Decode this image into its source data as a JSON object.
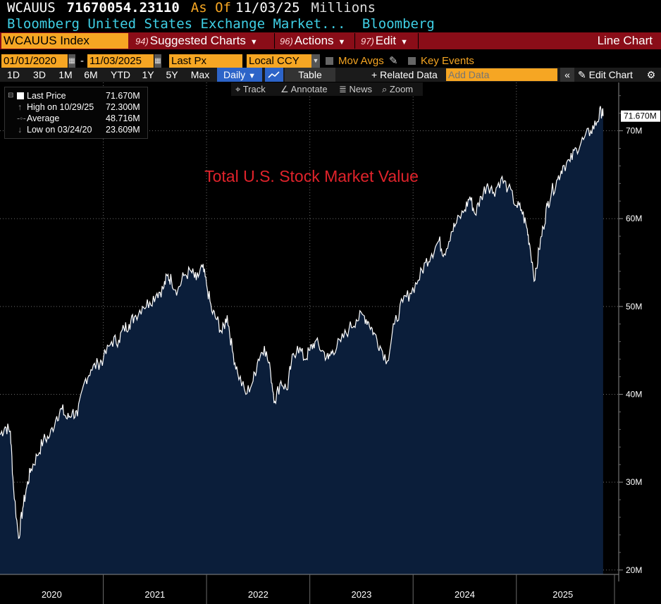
{
  "header": {
    "ticker": "WCAUUS",
    "value": "71670054.23110",
    "as_of_label": "As Of",
    "as_of_date": "11/03/25",
    "units": "Millions",
    "name": "Bloomberg United States Exchange Market...",
    "source": "Bloomberg"
  },
  "toolbar": {
    "index_label": "WCAUUS Index",
    "suggested_num": "94)",
    "suggested_label": "Suggested Charts",
    "actions_num": "96)",
    "actions_label": "Actions",
    "edit_num": "97)",
    "edit_label": "Edit",
    "chart_type": "Line Chart"
  },
  "controls": {
    "start_date": "01/01/2020",
    "date_sep": "-",
    "end_date": "11/03/2025",
    "field": "Last Px",
    "currency": "Local CCY",
    "mov_avgs": "Mov Avgs",
    "key_events": "Key Events",
    "periods": [
      "1D",
      "3D",
      "1M",
      "6M",
      "YTD",
      "1Y",
      "5Y",
      "Max"
    ],
    "frequency": "Daily",
    "table_label": "Table",
    "related_label": "Related Data",
    "add_data_placeholder": "Add Data",
    "edit_chart_label": "Edit Chart",
    "tools": [
      "Track",
      "Annotate",
      "News",
      "Zoom"
    ]
  },
  "legend": {
    "last_price_label": "Last Price",
    "last_price_value": "71.670M",
    "high_label": "High on 10/29/25",
    "high_value": "72.300M",
    "avg_label": "Average",
    "avg_value": "48.716M",
    "low_label": "Low on 03/24/20",
    "low_value": "23.609M"
  },
  "colors": {
    "background": "#000000",
    "area_fill": "#0b1e3a",
    "line": "#ffffff",
    "annotation": "#e0232b",
    "accent_orange": "#f6a623",
    "toolbar_red": "#8a0d18",
    "header_cyan": "#3fd0e6"
  },
  "chart_data": {
    "type": "area",
    "title": "Total U.S. Stock Market Value",
    "unit": "Millions",
    "x_labels": [
      "2020",
      "2021",
      "2022",
      "2023",
      "2024",
      "2025"
    ],
    "x_range": [
      2020.0,
      2025.95
    ],
    "ylim": [
      19.5,
      75.5
    ],
    "y_ticks": [
      20,
      30,
      40,
      50,
      60,
      70
    ],
    "y_tick_labels": [
      "20M",
      "30M",
      "40M",
      "50M",
      "60M",
      "70M"
    ],
    "last_value_label": "71.670M",
    "grid": true,
    "series": [
      {
        "name": "Last Price",
        "x": [
          2020.0,
          2020.05,
          2020.1,
          2020.13,
          2020.18,
          2020.22,
          2020.26,
          2020.3,
          2020.36,
          2020.42,
          2020.48,
          2020.55,
          2020.6,
          2020.65,
          2020.7,
          2020.75,
          2020.82,
          2020.88,
          2020.95,
          2021.0,
          2021.08,
          2021.15,
          2021.2,
          2021.25,
          2021.3,
          2021.38,
          2021.45,
          2021.52,
          2021.58,
          2021.62,
          2021.66,
          2021.72,
          2021.78,
          2021.85,
          2021.9,
          2021.96,
          2022.0,
          2022.05,
          2022.1,
          2022.15,
          2022.2,
          2022.25,
          2022.3,
          2022.38,
          2022.45,
          2022.5,
          2022.56,
          2022.62,
          2022.66,
          2022.72,
          2022.78,
          2022.82,
          2022.88,
          2022.95,
          2023.0,
          2023.05,
          2023.12,
          2023.18,
          2023.22,
          2023.3,
          2023.38,
          2023.45,
          2023.52,
          2023.57,
          2023.62,
          2023.68,
          2023.75,
          2023.82,
          2023.9,
          2023.97,
          2024.05,
          2024.12,
          2024.18,
          2024.25,
          2024.3,
          2024.37,
          2024.42,
          2024.5,
          2024.55,
          2024.6,
          2024.66,
          2024.72,
          2024.78,
          2024.85,
          2024.92,
          2025.0,
          2025.05,
          2025.1,
          2025.13,
          2025.18,
          2025.22,
          2025.26,
          2025.3,
          2025.34,
          2025.4,
          2025.45,
          2025.52,
          2025.58,
          2025.65,
          2025.72,
          2025.78,
          2025.82,
          2025.84
        ],
        "y": [
          35.4,
          36.3,
          35.8,
          29.5,
          23.6,
          27.0,
          29.5,
          31.5,
          33.0,
          34.8,
          35.2,
          37.5,
          38.3,
          37.2,
          38.0,
          37.5,
          41.5,
          42.8,
          43.5,
          44.0,
          46.0,
          46.2,
          47.5,
          48.0,
          48.8,
          50.0,
          50.5,
          51.5,
          52.0,
          53.5,
          53.0,
          51.8,
          53.5,
          54.0,
          53.0,
          54.5,
          52.5,
          49.5,
          48.5,
          47.0,
          49.0,
          45.0,
          42.5,
          40.0,
          41.5,
          44.0,
          45.5,
          42.5,
          39.2,
          41.5,
          40.5,
          43.5,
          45.5,
          44.0,
          45.0,
          46.0,
          45.0,
          44.0,
          45.0,
          46.0,
          47.5,
          48.5,
          49.0,
          48.2,
          47.0,
          45.5,
          43.8,
          48.0,
          50.5,
          51.5,
          53.0,
          55.0,
          56.0,
          57.5,
          56.0,
          58.5,
          59.5,
          61.0,
          62.5,
          60.5,
          62.5,
          64.0,
          63.0,
          64.5,
          63.5,
          61.5,
          61.0,
          59.0,
          57.0,
          53.0,
          56.5,
          59.0,
          61.5,
          63.0,
          64.5,
          66.0,
          66.5,
          68.0,
          69.0,
          70.0,
          71.0,
          72.3,
          71.67
        ]
      }
    ]
  }
}
